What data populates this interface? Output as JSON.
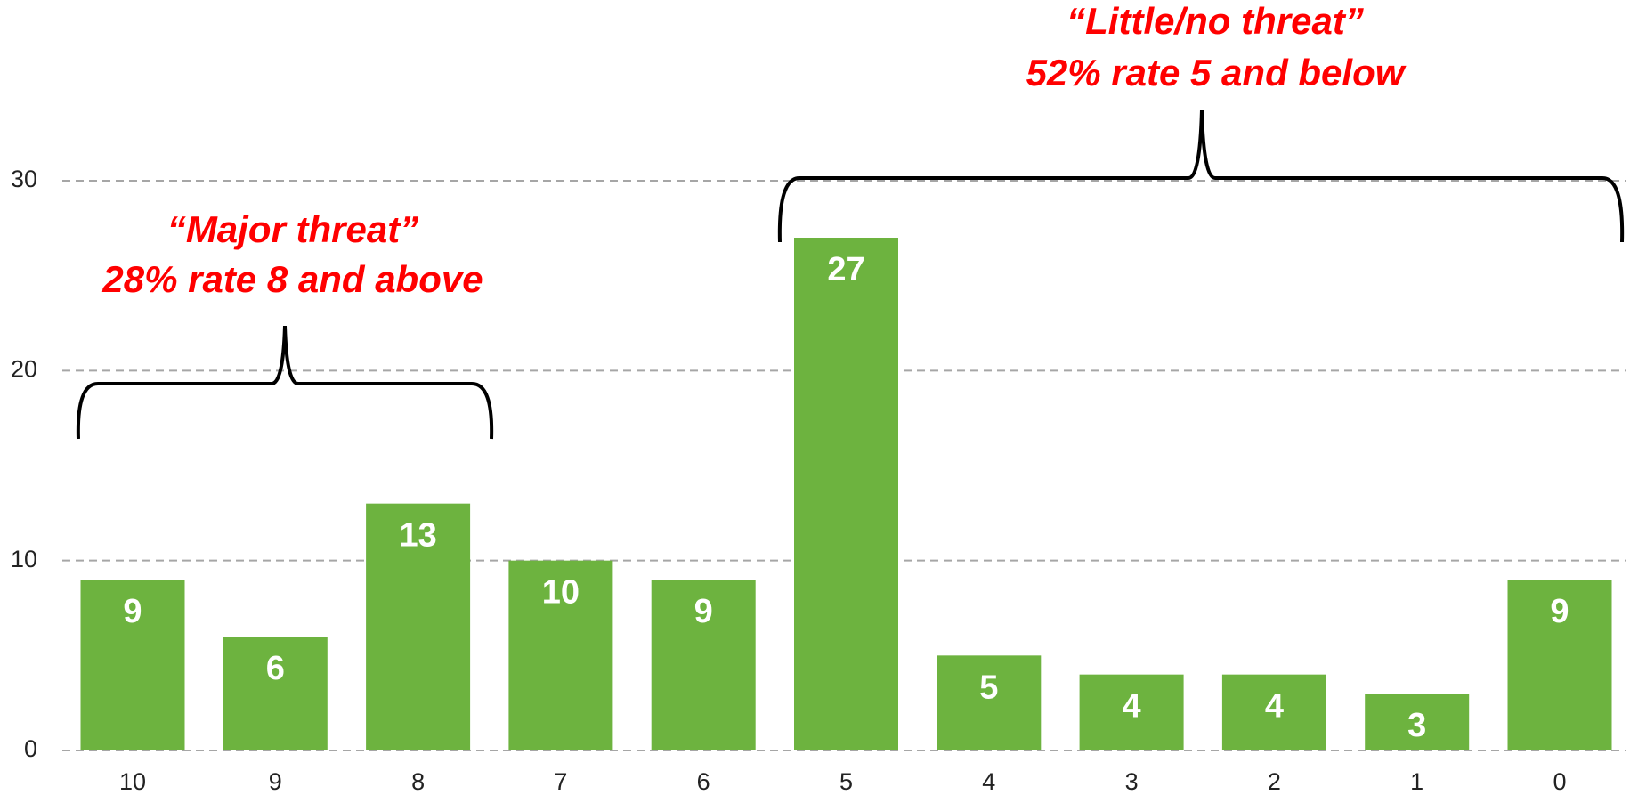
{
  "chart_data": {
    "type": "bar",
    "categories": [
      "10",
      "9",
      "8",
      "7",
      "6",
      "5",
      "4",
      "3",
      "2",
      "1",
      "0"
    ],
    "values": [
      9,
      6,
      13,
      10,
      9,
      27,
      5,
      4,
      4,
      3,
      9
    ],
    "color": "#6db33f",
    "ylim": [
      0,
      30
    ],
    "yticks": [
      0,
      10,
      20,
      30
    ],
    "grid": true,
    "annotations": [
      {
        "lines": [
          "“Major threat”",
          "28% rate 8 and above"
        ]
      },
      {
        "lines": [
          "“Little/no threat”",
          "52% rate 5 and below"
        ]
      }
    ]
  }
}
